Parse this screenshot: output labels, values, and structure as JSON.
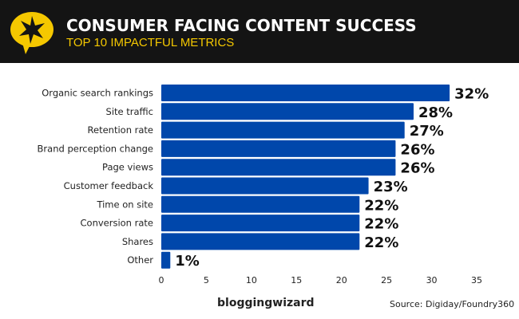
{
  "header": {
    "title": "CONSUMER FACING CONTENT SUCCESS",
    "subtitle": "TOP 10 IMPACTFUL METRICS",
    "logo_icon": "star-speech-bubble-icon"
  },
  "footer": {
    "brand": "bloggingwizard",
    "source": "Source: Digiday/Foundry360"
  },
  "colors": {
    "bar": "#0047ab",
    "header_bg": "#141414",
    "accent": "#f5c800"
  },
  "chart_data": {
    "type": "bar",
    "orientation": "horizontal",
    "categories": [
      "Organic search rankings",
      "Site traffic",
      "Retention rate",
      "Brand perception change",
      "Page views",
      "Customer feedback",
      "Time on site",
      "Conversion rate",
      "Shares",
      "Other"
    ],
    "values": [
      32,
      28,
      27,
      26,
      26,
      23,
      22,
      22,
      22,
      1
    ],
    "data_labels": [
      "32%",
      "28%",
      "27%",
      "26%",
      "26%",
      "23%",
      "22%",
      "22%",
      "22%",
      "1%"
    ],
    "xlim": [
      0,
      35
    ],
    "xticks": [
      0,
      5,
      10,
      15,
      20,
      25,
      30,
      35
    ],
    "grid": false
  }
}
